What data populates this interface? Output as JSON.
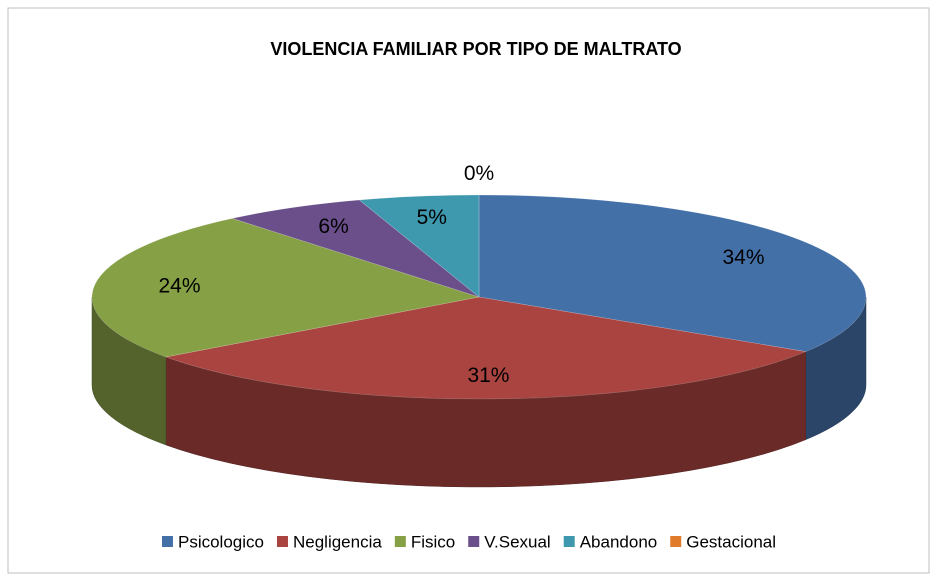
{
  "chart_data": {
    "type": "pie3d",
    "title": "VIOLENCIA FAMILIAR POR TIPO DE MALTRATO",
    "categories": [
      "Psicologico",
      "Negligencia",
      "Fisico",
      "V.Sexual",
      "Abandono",
      "Gestacional"
    ],
    "values": [
      34,
      31,
      24,
      6,
      5,
      0
    ],
    "value_labels": [
      "34%",
      "31%",
      "24%",
      "6%",
      "5%",
      "0%"
    ],
    "colors": [
      "#4470a8",
      "#a94440",
      "#86a045",
      "#6a4f8a",
      "#3e98ae",
      "#e07b2c"
    ],
    "legend": "bottom"
  }
}
